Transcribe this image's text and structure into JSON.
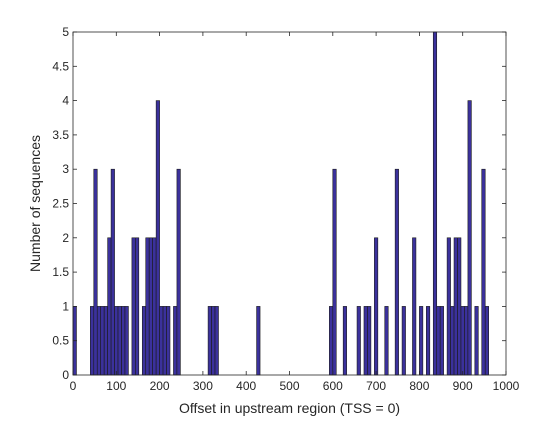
{
  "chart_data": {
    "type": "bar",
    "title": "",
    "xlabel": "Offset in upstream region (TSS = 0)",
    "ylabel": "Number of sequences",
    "xlim": [
      0,
      1000
    ],
    "ylim": [
      0,
      5
    ],
    "bin_width": 8,
    "xticks": [
      0,
      100,
      200,
      300,
      400,
      500,
      600,
      700,
      800,
      900,
      1000
    ],
    "yticks": [
      0,
      0.5,
      1,
      1.5,
      2,
      2.5,
      3,
      3.5,
      4,
      4.5,
      5
    ],
    "xtick_labels": [
      "0",
      "100",
      "200",
      "300",
      "400",
      "500",
      "600",
      "700",
      "800",
      "900",
      "1000"
    ],
    "ytick_labels": [
      "0",
      "0.5",
      "1",
      "1.5",
      "2",
      "2.5",
      "3",
      "3.5",
      "4",
      "4.5",
      "5"
    ],
    "grid": false,
    "bar_color": "#3b319c",
    "edge_color": "#1a1a1a",
    "x": [
      4,
      44,
      52,
      60,
      68,
      76,
      84,
      92,
      100,
      108,
      116,
      124,
      140,
      148,
      164,
      172,
      180,
      188,
      196,
      204,
      212,
      220,
      236,
      244,
      316,
      324,
      332,
      428,
      596,
      604,
      628,
      660,
      676,
      684,
      700,
      724,
      748,
      764,
      788,
      804,
      820,
      836,
      844,
      852,
      868,
      876,
      884,
      892,
      900,
      908,
      916,
      932,
      948,
      956
    ],
    "values": [
      1,
      1,
      3,
      1,
      1,
      1,
      2,
      3,
      1,
      1,
      1,
      1,
      2,
      2,
      1,
      2,
      2,
      2,
      4,
      1,
      1,
      1,
      1,
      3,
      1,
      1,
      1,
      1,
      1,
      3,
      1,
      1,
      1,
      1,
      2,
      1,
      3,
      1,
      2,
      1,
      1,
      5,
      1,
      1,
      2,
      1,
      2,
      2,
      1,
      1,
      4,
      1,
      3,
      1
    ]
  }
}
